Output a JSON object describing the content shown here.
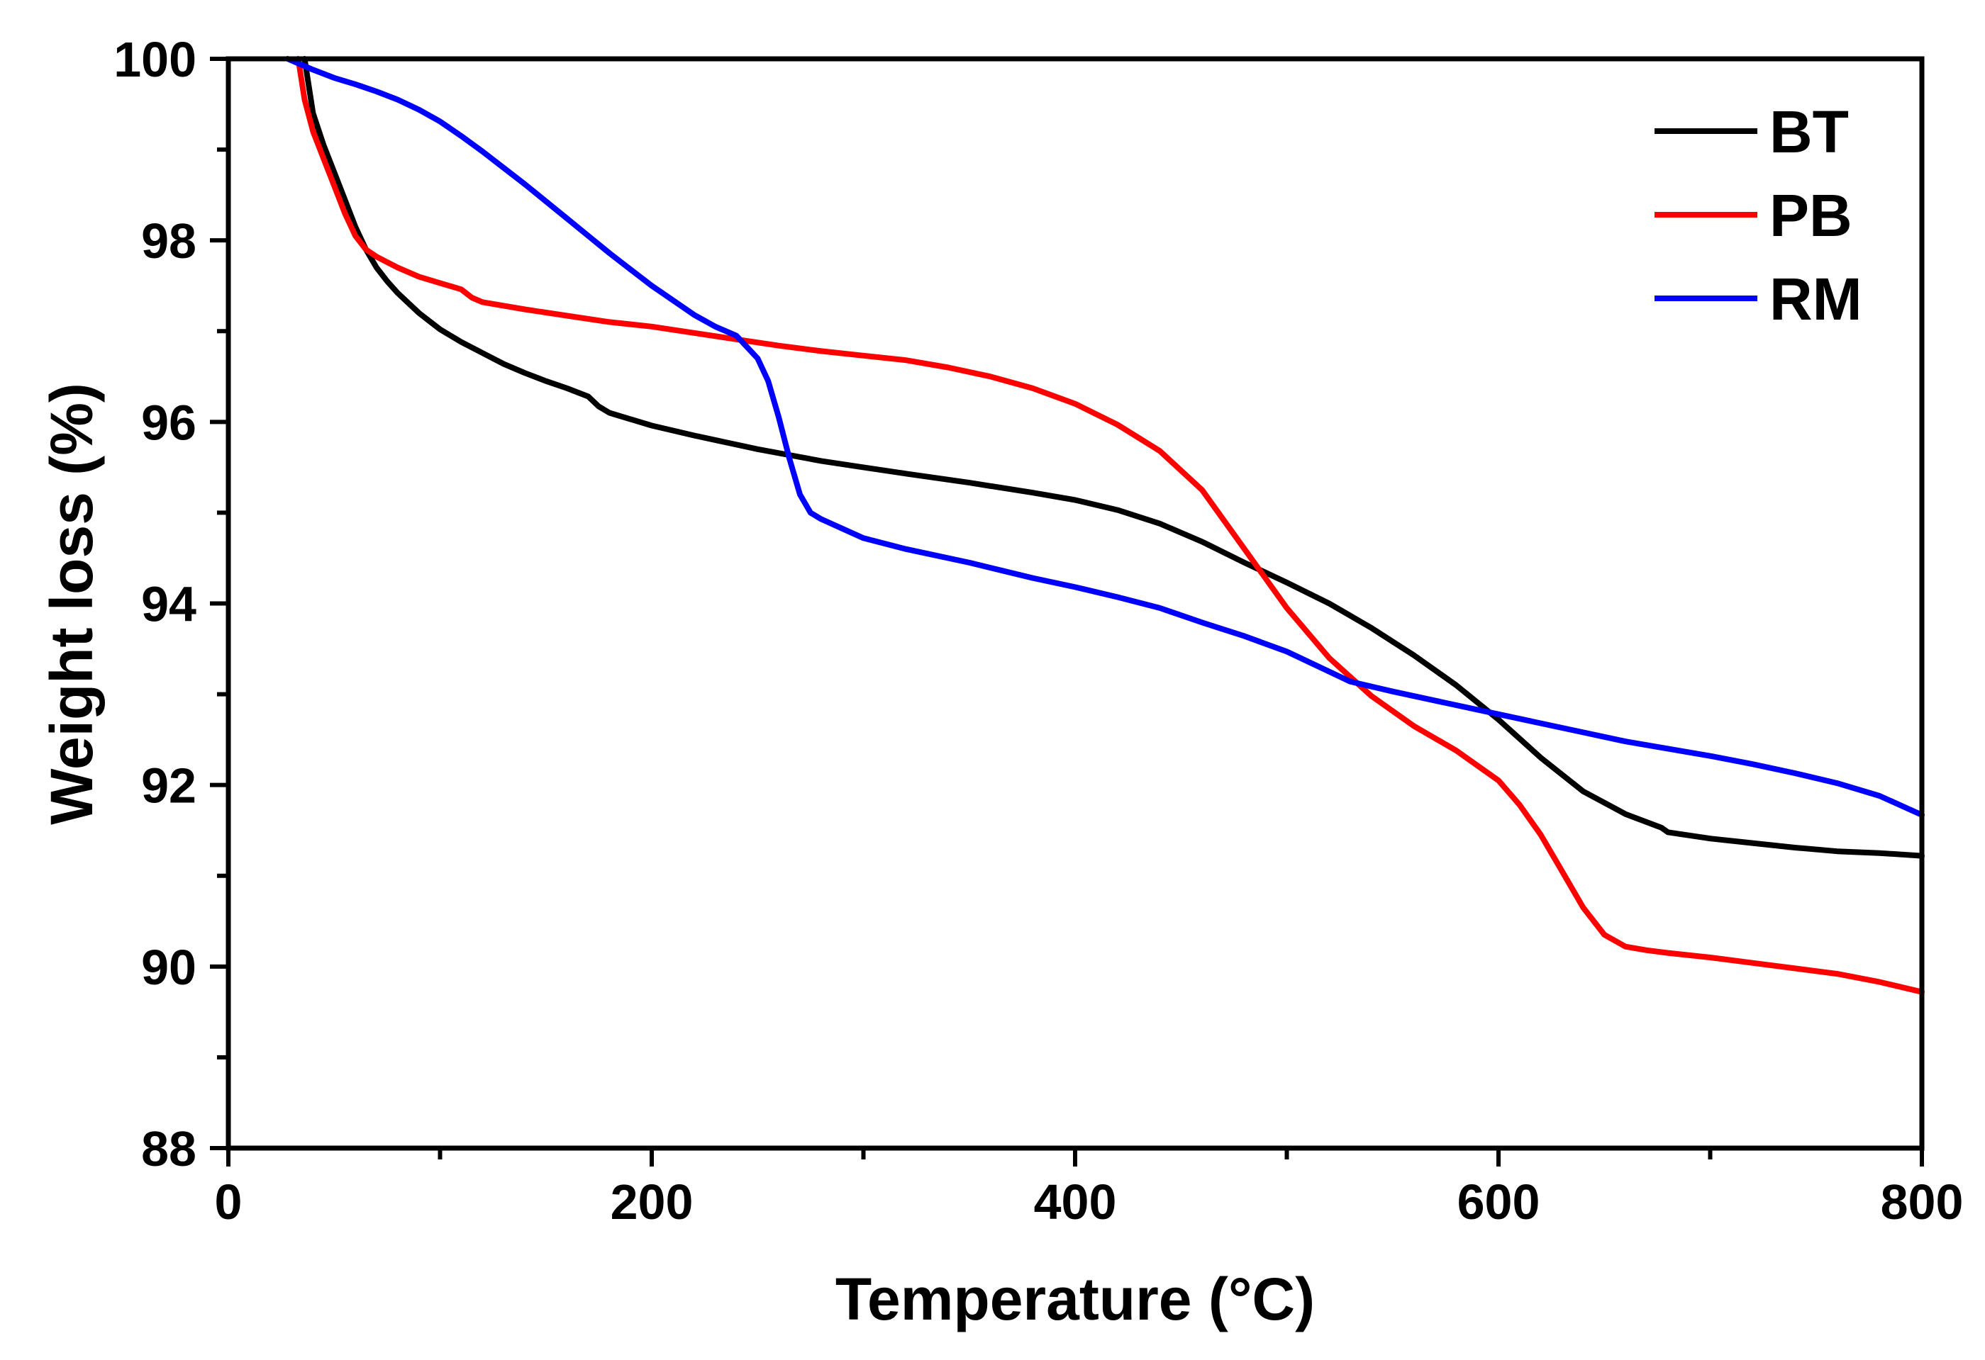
{
  "chart_data": {
    "type": "line",
    "title": "",
    "xlabel": "Temperature (°C)",
    "ylabel": "Weight loss (%)",
    "xlim": [
      0,
      800
    ],
    "ylim": [
      88,
      100
    ],
    "x_ticks": [
      0,
      200,
      400,
      600,
      800
    ],
    "y_ticks": [
      88,
      90,
      92,
      94,
      96,
      98,
      100
    ],
    "x_tick_labels": [
      "0",
      "200",
      "400",
      "600",
      "800"
    ],
    "y_tick_labels": [
      "88",
      "90",
      "92",
      "94",
      "96",
      "98",
      "100"
    ],
    "grid": false,
    "legend_position": "top-right",
    "legend": [
      "BT",
      "PB",
      "RM"
    ],
    "series": [
      {
        "name": "BT",
        "color": "#000000",
        "x": [
          36,
          40,
          45,
          50,
          55,
          60,
          65,
          70,
          75,
          80,
          90,
          100,
          110,
          120,
          130,
          140,
          150,
          160,
          170,
          175,
          180,
          190,
          200,
          220,
          250,
          280,
          300,
          320,
          350,
          380,
          400,
          420,
          440,
          460,
          480,
          500,
          520,
          540,
          560,
          580,
          600,
          620,
          640,
          660,
          677,
          680,
          700,
          720,
          740,
          760,
          780,
          800
        ],
        "y": [
          100,
          99.4,
          99.05,
          98.75,
          98.45,
          98.15,
          97.9,
          97.7,
          97.55,
          97.42,
          97.2,
          97.02,
          96.88,
          96.76,
          96.64,
          96.54,
          96.45,
          96.37,
          96.28,
          96.17,
          96.1,
          96.03,
          95.96,
          95.85,
          95.7,
          95.57,
          95.5,
          95.43,
          95.33,
          95.22,
          95.14,
          95.03,
          94.88,
          94.68,
          94.45,
          94.23,
          94.0,
          93.73,
          93.43,
          93.1,
          92.72,
          92.3,
          91.93,
          91.68,
          91.53,
          91.48,
          91.41,
          91.36,
          91.31,
          91.27,
          91.25,
          91.22
        ]
      },
      {
        "name": "PB",
        "color": "#ff0000",
        "x": [
          33,
          36,
          40,
          45,
          50,
          55,
          60,
          65,
          70,
          75,
          80,
          90,
          100,
          110,
          115,
          120,
          140,
          160,
          180,
          200,
          220,
          240,
          260,
          280,
          300,
          320,
          340,
          360,
          380,
          400,
          420,
          440,
          460,
          480,
          500,
          520,
          540,
          560,
          580,
          600,
          610,
          620,
          630,
          640,
          650,
          660,
          670,
          680,
          700,
          720,
          740,
          760,
          780,
          800
        ],
        "y": [
          100,
          99.55,
          99.2,
          98.9,
          98.6,
          98.3,
          98.05,
          97.9,
          97.82,
          97.76,
          97.7,
          97.6,
          97.53,
          97.46,
          97.37,
          97.32,
          97.24,
          97.17,
          97.1,
          97.05,
          96.98,
          96.91,
          96.84,
          96.78,
          96.73,
          96.68,
          96.6,
          96.5,
          96.37,
          96.2,
          95.97,
          95.68,
          95.25,
          94.6,
          93.95,
          93.4,
          92.98,
          92.65,
          92.38,
          92.05,
          91.78,
          91.45,
          91.05,
          90.65,
          90.35,
          90.22,
          90.18,
          90.15,
          90.1,
          90.04,
          89.98,
          89.92,
          89.83,
          89.72
        ]
      },
      {
        "name": "RM",
        "color": "#0000ff",
        "x": [
          28,
          40,
          50,
          60,
          70,
          80,
          90,
          100,
          110,
          120,
          130,
          140,
          150,
          160,
          170,
          180,
          190,
          200,
          210,
          220,
          230,
          240,
          250,
          255,
          260,
          265,
          270,
          275,
          280,
          300,
          320,
          350,
          380,
          400,
          420,
          440,
          460,
          480,
          500,
          520,
          530,
          550,
          580,
          600,
          620,
          640,
          660,
          680,
          700,
          720,
          740,
          760,
          780,
          800
        ],
        "y": [
          100,
          99.88,
          99.79,
          99.72,
          99.64,
          99.55,
          99.44,
          99.31,
          99.15,
          98.98,
          98.8,
          98.62,
          98.43,
          98.24,
          98.05,
          97.86,
          97.68,
          97.5,
          97.34,
          97.18,
          97.05,
          96.95,
          96.7,
          96.45,
          96.05,
          95.6,
          95.2,
          95.0,
          94.93,
          94.72,
          94.6,
          94.45,
          94.28,
          94.18,
          94.07,
          93.95,
          93.79,
          93.64,
          93.47,
          93.25,
          93.14,
          93.03,
          92.88,
          92.78,
          92.68,
          92.58,
          92.48,
          92.4,
          92.32,
          92.23,
          92.13,
          92.02,
          91.88,
          91.67
        ]
      }
    ]
  }
}
